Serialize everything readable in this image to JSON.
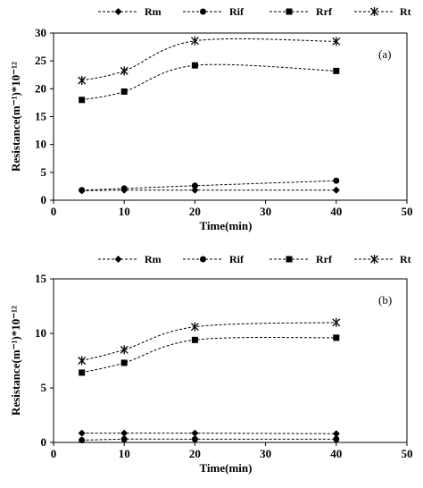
{
  "chart_data": [
    {
      "type": "line",
      "panel_label": "(a)",
      "xlabel": "Time(min)",
      "ylabel": "Resistance(m⁻¹)*10⁻¹²",
      "xlim": [
        0,
        50
      ],
      "ylim": [
        0,
        30
      ],
      "xticks": [
        0,
        10,
        20,
        30,
        40,
        50
      ],
      "yticks": [
        0,
        5,
        10,
        15,
        20,
        25,
        30
      ],
      "grid": false,
      "legend_position": "top",
      "x": [
        4,
        10,
        20,
        40
      ],
      "series": [
        {
          "name": "Rm",
          "marker": "diamond",
          "values": [
            1.7,
            1.8,
            1.8,
            1.8
          ]
        },
        {
          "name": "Rif",
          "marker": "circle",
          "values": [
            1.8,
            2.1,
            2.6,
            3.5
          ]
        },
        {
          "name": "Rrf",
          "marker": "square",
          "values": [
            18.0,
            19.5,
            24.2,
            23.2
          ]
        },
        {
          "name": "Rt",
          "marker": "star",
          "values": [
            21.5,
            23.2,
            28.6,
            28.5
          ]
        }
      ]
    },
    {
      "type": "line",
      "panel_label": "(b)",
      "xlabel": "Time(min)",
      "ylabel": "Resistance(m⁻¹)*10⁻¹²",
      "xlim": [
        0,
        50
      ],
      "ylim": [
        0,
        15
      ],
      "xticks": [
        0,
        10,
        20,
        30,
        40,
        50
      ],
      "yticks": [
        0,
        5,
        10,
        15
      ],
      "grid": false,
      "legend_position": "top",
      "x": [
        4,
        10,
        20,
        40
      ],
      "series": [
        {
          "name": "Rm",
          "marker": "diamond",
          "values": [
            0.85,
            0.85,
            0.85,
            0.8
          ]
        },
        {
          "name": "Rif",
          "marker": "circle",
          "values": [
            0.2,
            0.3,
            0.3,
            0.3
          ]
        },
        {
          "name": "Rrf",
          "marker": "square",
          "values": [
            6.4,
            7.3,
            9.4,
            9.6
          ]
        },
        {
          "name": "Rt",
          "marker": "star",
          "values": [
            7.5,
            8.5,
            10.6,
            11.0
          ]
        }
      ]
    }
  ]
}
